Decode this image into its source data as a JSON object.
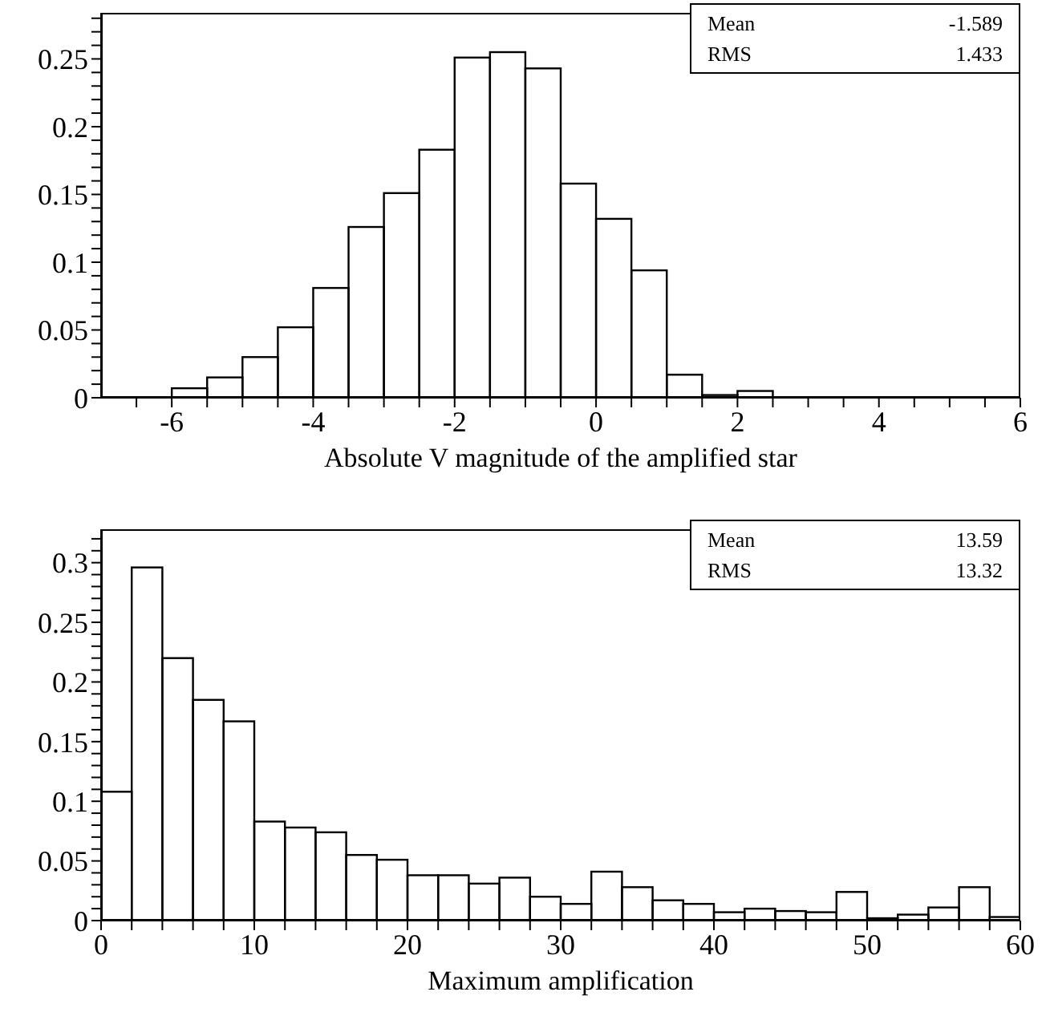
{
  "chart_data": [
    {
      "type": "histogram",
      "xlabel": "Absolute V magnitude of the amplified star",
      "color": "#000000",
      "bins": [
        -7,
        -6.5,
        -6,
        -5.5,
        -5,
        -4.5,
        -4,
        -3.5,
        -3,
        -2.5,
        -2,
        -1.5,
        -1,
        -0.5,
        0,
        0.5,
        1,
        1.5,
        2,
        2.5,
        3,
        3.5,
        4,
        4.5,
        5,
        5.5,
        6
      ],
      "values": [
        0,
        0,
        0.007,
        0.015,
        0.03,
        0.052,
        0.081,
        0.126,
        0.151,
        0.183,
        0.251,
        0.255,
        0.243,
        0.158,
        0.132,
        0.094,
        0.017,
        0.002,
        0.005,
        0,
        0,
        0,
        0,
        0,
        0,
        0
      ],
      "xlim": [
        -7,
        6
      ],
      "xticks": [
        -6,
        -4,
        -2,
        0,
        2,
        4,
        6,
        {
          "value": -6.5,
          "label": null
        },
        {
          "value": -5.5,
          "label": null
        },
        {
          "value": -5,
          "label": null
        },
        {
          "value": -4.5,
          "label": null
        },
        {
          "value": -3.5,
          "label": null
        },
        {
          "value": -3,
          "label": null
        },
        {
          "value": -2.5,
          "label": null
        },
        {
          "value": -1.5,
          "label": null
        },
        {
          "value": -1,
          "label": null
        },
        {
          "value": -0.5,
          "label": null
        },
        {
          "value": 0.5,
          "label": null
        },
        {
          "value": 1,
          "label": null
        },
        {
          "value": 1.5,
          "label": null
        },
        {
          "value": 2.5,
          "label": null
        },
        {
          "value": 3,
          "label": null
        },
        {
          "value": 3.5,
          "label": null
        },
        {
          "value": 4.5,
          "label": null
        },
        {
          "value": 5,
          "label": null
        },
        {
          "value": 5.5,
          "label": null
        }
      ],
      "ylim": [
        0,
        0.284
      ],
      "yticks": [
        0,
        0.05,
        0.1,
        0.15,
        0.2,
        0.25,
        {
          "value": 0.01,
          "label": null
        },
        {
          "value": 0.02,
          "label": null
        },
        {
          "value": 0.03,
          "label": null
        },
        {
          "value": 0.04,
          "label": null
        },
        {
          "value": 0.06,
          "label": null
        },
        {
          "value": 0.07,
          "label": null
        },
        {
          "value": 0.08,
          "label": null
        },
        {
          "value": 0.09,
          "label": null
        },
        {
          "value": 0.11,
          "label": null
        },
        {
          "value": 0.12,
          "label": null
        },
        {
          "value": 0.13,
          "label": null
        },
        {
          "value": 0.14,
          "label": null
        },
        {
          "value": 0.16,
          "label": null
        },
        {
          "value": 0.17,
          "label": null
        },
        {
          "value": 0.18,
          "label": null
        },
        {
          "value": 0.19,
          "label": null
        },
        {
          "value": 0.21,
          "label": null
        },
        {
          "value": 0.22,
          "label": null
        },
        {
          "value": 0.23,
          "label": null
        },
        {
          "value": 0.24,
          "label": null
        },
        {
          "value": 0.26,
          "label": null
        },
        {
          "value": 0.27,
          "label": null
        },
        {
          "value": 0.28,
          "label": null
        }
      ],
      "annotations": [
        "Mean",
        "-1.589",
        "RMS",
        "1.433"
      ]
    },
    {
      "type": "histogram",
      "xlabel": "Maximum amplification",
      "color": "#000000",
      "bins": [
        0,
        2,
        4,
        6,
        8,
        10,
        12,
        14,
        16,
        18,
        20,
        22,
        24,
        26,
        28,
        30,
        32,
        34,
        36,
        38,
        40,
        42,
        44,
        46,
        48,
        50,
        52,
        54,
        56,
        58,
        60
      ],
      "values": [
        0.108,
        0.296,
        0.22,
        0.185,
        0.167,
        0.083,
        0.078,
        0.074,
        0.055,
        0.051,
        0.038,
        0.038,
        0.031,
        0.036,
        0.02,
        0.014,
        0.041,
        0.028,
        0.017,
        0.014,
        0.007,
        0.01,
        0.008,
        0.007,
        0.024,
        0.002,
        0.005,
        0.011,
        0.028,
        0.003
      ],
      "xlim": [
        0,
        60
      ],
      "xticks": [
        0,
        10,
        20,
        30,
        40,
        50,
        60,
        {
          "value": 2,
          "label": null
        },
        {
          "value": 4,
          "label": null
        },
        {
          "value": 6,
          "label": null
        },
        {
          "value": 8,
          "label": null
        },
        {
          "value": 12,
          "label": null
        },
        {
          "value": 14,
          "label": null
        },
        {
          "value": 16,
          "label": null
        },
        {
          "value": 18,
          "label": null
        },
        {
          "value": 22,
          "label": null
        },
        {
          "value": 24,
          "label": null
        },
        {
          "value": 26,
          "label": null
        },
        {
          "value": 28,
          "label": null
        },
        {
          "value": 32,
          "label": null
        },
        {
          "value": 34,
          "label": null
        },
        {
          "value": 36,
          "label": null
        },
        {
          "value": 38,
          "label": null
        },
        {
          "value": 42,
          "label": null
        },
        {
          "value": 44,
          "label": null
        },
        {
          "value": 46,
          "label": null
        },
        {
          "value": 48,
          "label": null
        },
        {
          "value": 52,
          "label": null
        },
        {
          "value": 54,
          "label": null
        },
        {
          "value": 56,
          "label": null
        },
        {
          "value": 58,
          "label": null
        }
      ],
      "ylim": [
        0,
        0.328
      ],
      "yticks": [
        0,
        0.05,
        0.1,
        0.15,
        0.2,
        0.25,
        0.3,
        {
          "value": 0.01,
          "label": null
        },
        {
          "value": 0.02,
          "label": null
        },
        {
          "value": 0.03,
          "label": null
        },
        {
          "value": 0.04,
          "label": null
        },
        {
          "value": 0.06,
          "label": null
        },
        {
          "value": 0.07,
          "label": null
        },
        {
          "value": 0.08,
          "label": null
        },
        {
          "value": 0.09,
          "label": null
        },
        {
          "value": 0.11,
          "label": null
        },
        {
          "value": 0.12,
          "label": null
        },
        {
          "value": 0.13,
          "label": null
        },
        {
          "value": 0.14,
          "label": null
        },
        {
          "value": 0.16,
          "label": null
        },
        {
          "value": 0.17,
          "label": null
        },
        {
          "value": 0.18,
          "label": null
        },
        {
          "value": 0.19,
          "label": null
        },
        {
          "value": 0.21,
          "label": null
        },
        {
          "value": 0.22,
          "label": null
        },
        {
          "value": 0.23,
          "label": null
        },
        {
          "value": 0.24,
          "label": null
        },
        {
          "value": 0.26,
          "label": null
        },
        {
          "value": 0.27,
          "label": null
        },
        {
          "value": 0.28,
          "label": null
        },
        {
          "value": 0.29,
          "label": null
        },
        {
          "value": 0.31,
          "label": null
        },
        {
          "value": 0.32,
          "label": null
        }
      ],
      "annotations": [
        "Mean",
        "13.59",
        "RMS",
        "13.32"
      ]
    }
  ]
}
